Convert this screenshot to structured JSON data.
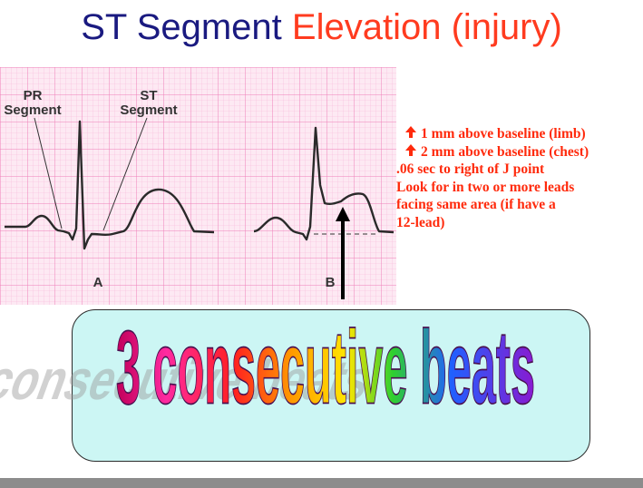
{
  "title": {
    "part1": "ST Segment",
    "part2": "Elevation (injury)"
  },
  "ecg": {
    "label_pr": [
      "PR",
      "Segment"
    ],
    "label_st": [
      "ST",
      "Segment"
    ],
    "panel_a": "A",
    "panel_b": "B"
  },
  "notes": [
    {
      "arrow": "up-arrow-icon",
      "text": "1 mm above baseline (limb)"
    },
    {
      "arrow": "up-arrow-icon",
      "text": "2 mm above baseline (chest)"
    },
    {
      "arrow": null,
      "text": ".06 sec to right of J point"
    },
    {
      "arrow": null,
      "text": "Look for in two or more leads"
    },
    {
      "arrow": null,
      "text": "facing same area (if have a"
    },
    {
      "arrow": null,
      "text": "12-lead)"
    }
  ],
  "callout": {
    "text": "3 consecutive beats"
  },
  "colors": {
    "title_blue": "#1a1a80",
    "title_red": "#ff3b1f",
    "note_red": "#ff2a0c",
    "grid_pink": "#f29ac8",
    "callout_bg": "#ccf6f4"
  }
}
